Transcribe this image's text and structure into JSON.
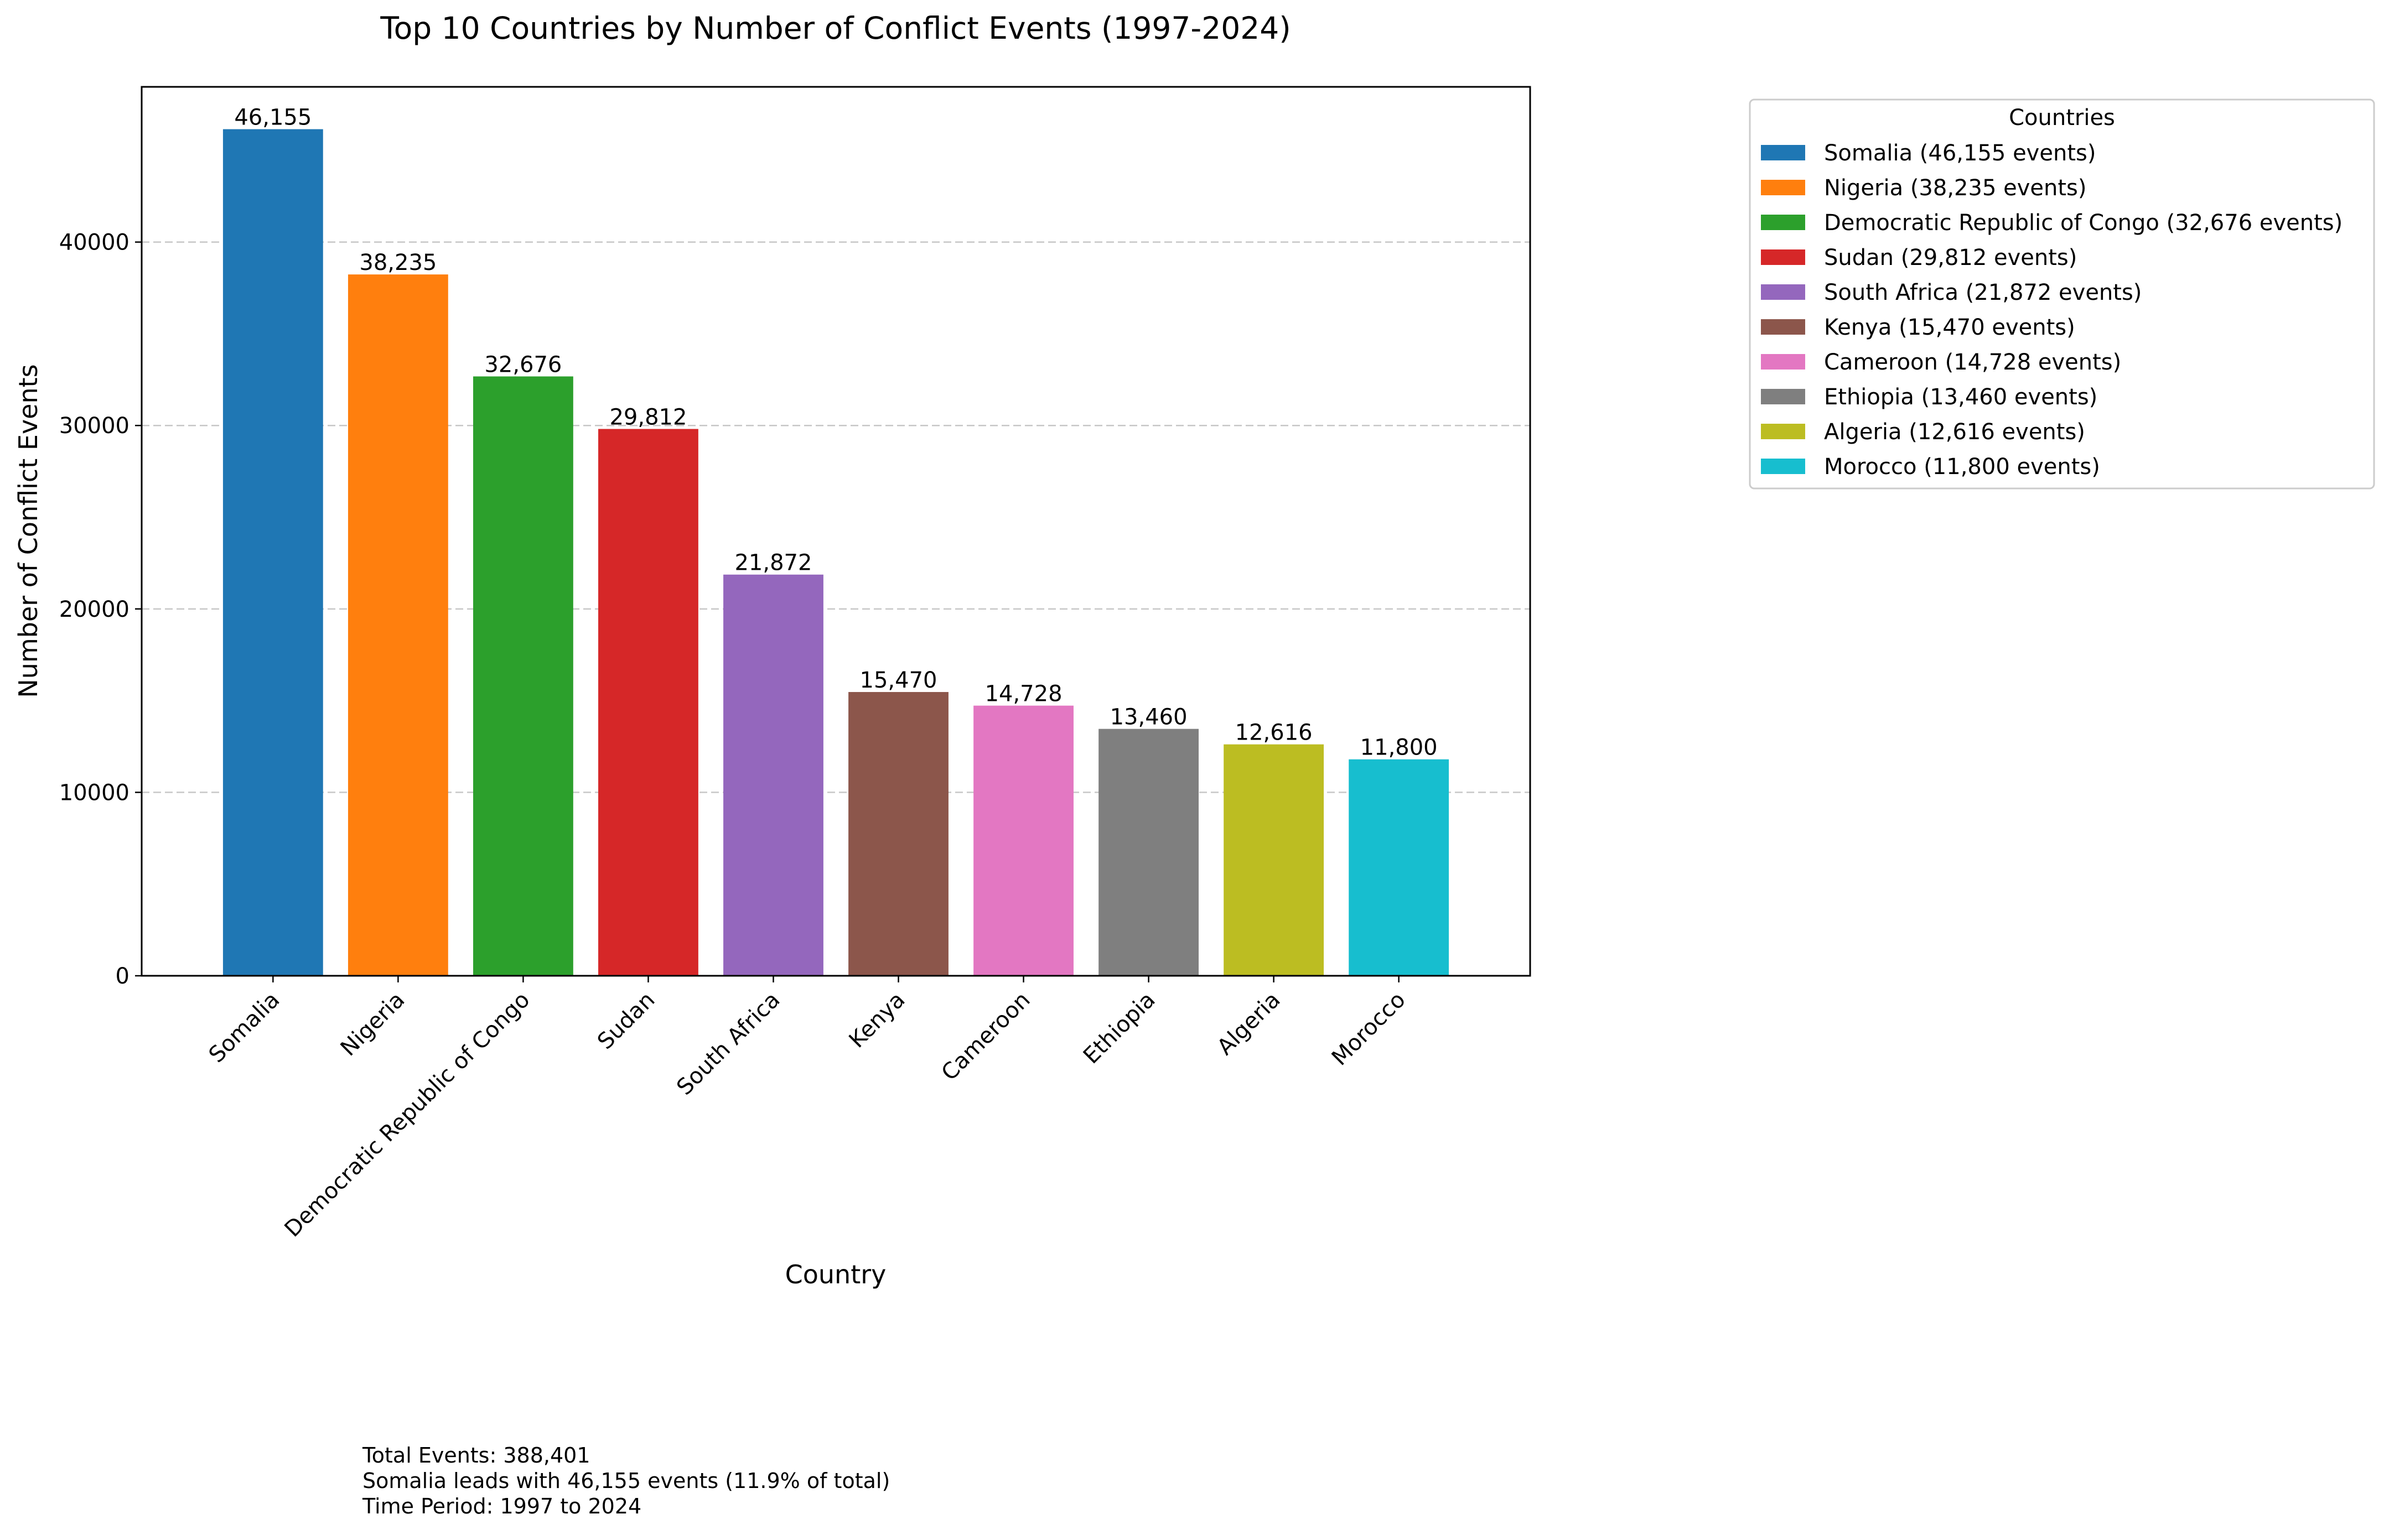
{
  "chart_data": {
    "type": "bar",
    "title": "Top 10 Countries by Number of Conflict Events (1997-2024)",
    "xlabel": "Country",
    "ylabel": "Number of Conflict Events",
    "categories": [
      "Somalia",
      "Nigeria",
      "Democratic Republic of Congo",
      "Sudan",
      "South Africa",
      "Kenya",
      "Cameroon",
      "Ethiopia",
      "Algeria",
      "Morocco"
    ],
    "values": [
      46155,
      38235,
      32676,
      29812,
      21872,
      15470,
      14728,
      13460,
      12616,
      11800
    ],
    "value_labels": [
      "46,155",
      "38,235",
      "32,676",
      "29,812",
      "21,872",
      "15,470",
      "14,728",
      "13,460",
      "12,616",
      "11,800"
    ],
    "colors": [
      "#1f77b4",
      "#ff7f0e",
      "#2ca02c",
      "#d62728",
      "#9467bd",
      "#8c564b",
      "#e377c2",
      "#7f7f7f",
      "#bcbd22",
      "#17becf"
    ],
    "ylim": [
      0,
      48463
    ],
    "yticks": [
      0,
      10000,
      20000,
      30000,
      40000
    ],
    "grid": "y-axis dashed",
    "legend": {
      "title": "Countries",
      "placement": "outside top-right",
      "entries": [
        "Somalia (46,155 events)",
        "Nigeria (38,235 events)",
        "Democratic Republic of Congo (32,676 events)",
        "Sudan (29,812 events)",
        "South Africa (21,872 events)",
        "Kenya (15,470 events)",
        "Cameroon (14,728 events)",
        "Ethiopia (13,460 events)",
        "Algeria (12,616 events)",
        "Morocco (11,800 events)"
      ]
    }
  },
  "notes": {
    "total": "Total Events: 388,401",
    "leader": "Somalia leads with 46,155 events (11.9% of total)",
    "period": "Time Period: 1997 to 2024"
  }
}
